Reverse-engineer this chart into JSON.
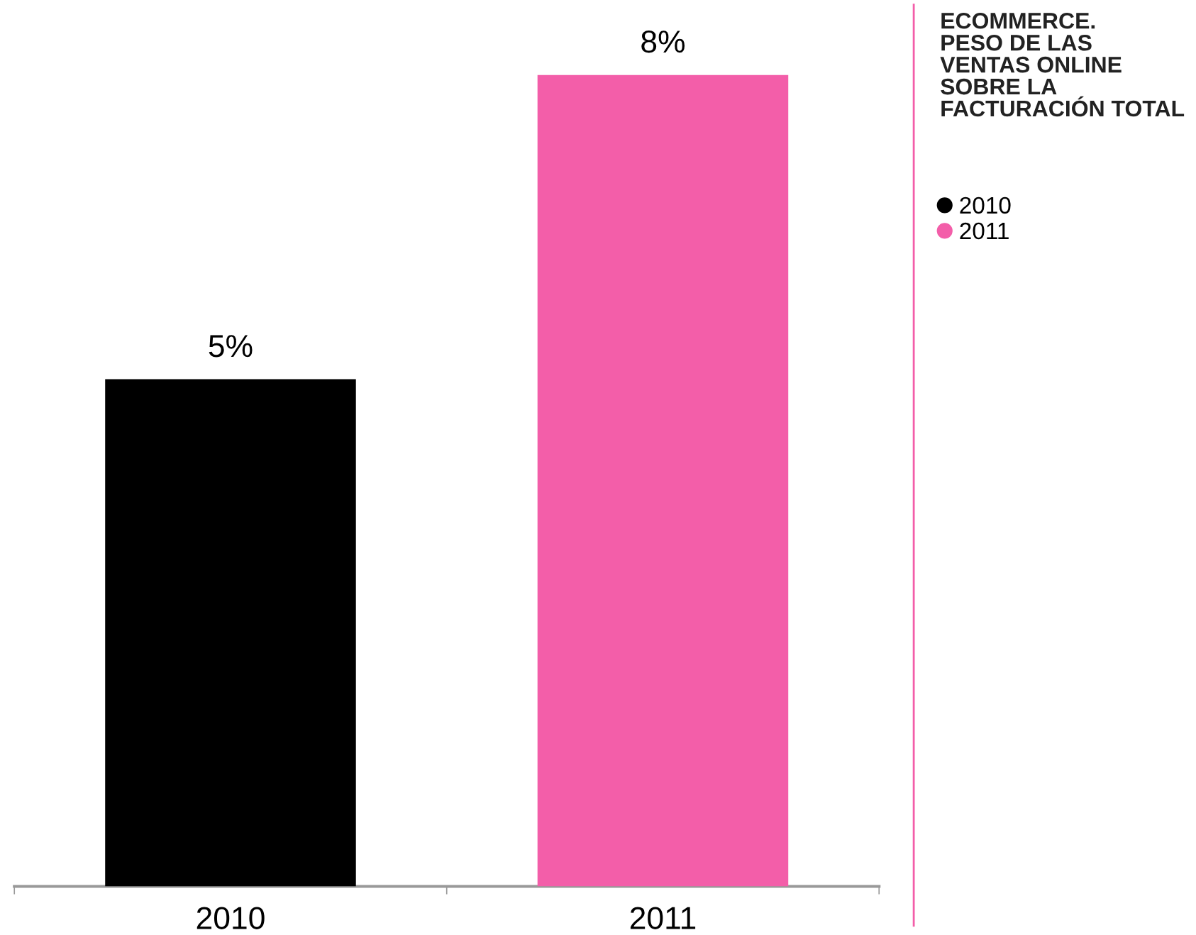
{
  "chart_data": {
    "type": "bar",
    "title": "ECOMMERCE.\nPESO DE LAS\nVENTAS ONLINE\nSOBRE LA\nFACTURACIÓN TOTAL",
    "categories": [
      "2010",
      "2011"
    ],
    "series": [
      {
        "name": "2010",
        "color": "#000000",
        "values": [
          5,
          null
        ],
        "value_labels": [
          "5%",
          null
        ]
      },
      {
        "name": "2011",
        "color": "#f35ea9",
        "values": [
          null,
          8
        ],
        "value_labels": [
          null,
          "8%"
        ]
      }
    ],
    "legend": "right"
  }
}
